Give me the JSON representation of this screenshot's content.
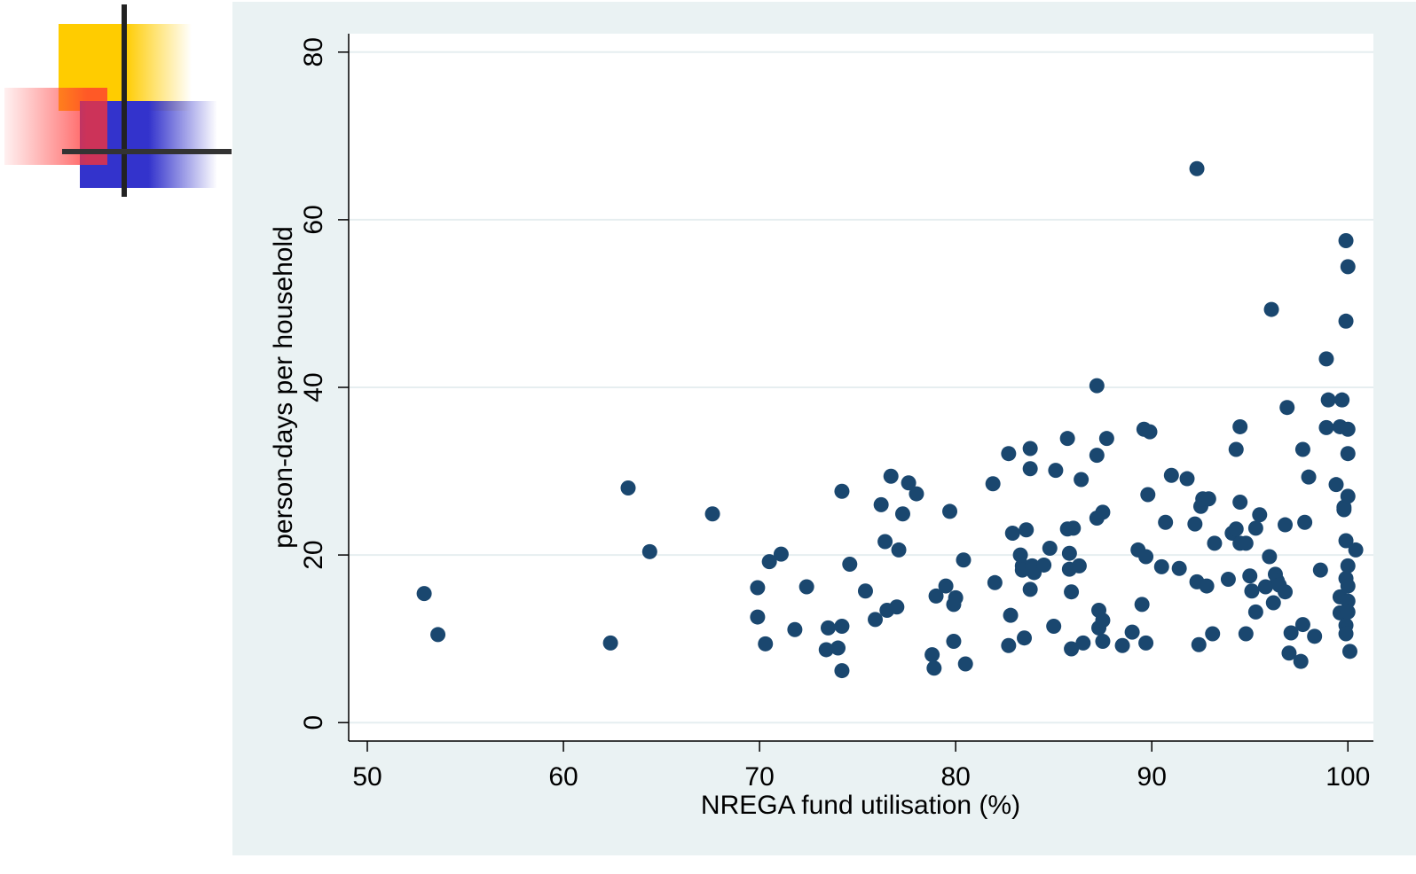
{
  "chart_data": {
    "type": "scatter",
    "xlabel": "NREGA fund utilisation (%)",
    "ylabel": "person-days per household",
    "xlim": [
      49.05,
      101.3
    ],
    "ylim": [
      -2.2,
      82.2
    ],
    "xticks": [
      50,
      60,
      70,
      80,
      90,
      100
    ],
    "yticks": [
      0,
      20,
      40,
      60,
      80
    ],
    "grid": true,
    "color": "#1a476f",
    "x": [
      52.9,
      53.6,
      62.4,
      63.3,
      64.4,
      67.6,
      69.9,
      69.9,
      70.3,
      70.5,
      71.1,
      71.8,
      72.4,
      73.4,
      73.5,
      74.0,
      74.2,
      74.2,
      74.2,
      74.6,
      75.4,
      75.9,
      76.2,
      76.4,
      76.5,
      76.7,
      77.0,
      77.1,
      77.3,
      77.6,
      78.0,
      78.8,
      78.9,
      79.0,
      79.5,
      79.7,
      79.9,
      80.0,
      79.9,
      80.4,
      80.5,
      81.9,
      82.0,
      82.7,
      82.7,
      82.8,
      82.9,
      83.3,
      83.4,
      83.4,
      83.5,
      83.6,
      83.8,
      83.8,
      83.8,
      83.9,
      84.0,
      84.5,
      84.8,
      85.0,
      85.1,
      85.7,
      85.7,
      85.8,
      85.8,
      85.9,
      85.9,
      86.0,
      86.3,
      86.4,
      86.5,
      87.2,
      87.2,
      87.2,
      87.3,
      87.3,
      87.5,
      87.5,
      87.5,
      87.7,
      88.5,
      89.0,
      89.3,
      89.5,
      89.6,
      89.7,
      89.7,
      89.8,
      89.9,
      90.5,
      90.7,
      91.0,
      91.4,
      91.8,
      92.2,
      92.3,
      92.3,
      92.4,
      92.5,
      92.6,
      92.8,
      92.9,
      93.1,
      93.2,
      93.9,
      94.1,
      94.3,
      94.3,
      94.5,
      94.5,
      94.5,
      94.8,
      94.8,
      95.0,
      95.1,
      95.3,
      95.3,
      95.5,
      95.8,
      96.0,
      96.1,
      96.2,
      96.3,
      96.4,
      96.5,
      96.8,
      96.8,
      96.9,
      97.0,
      97.1,
      97.6,
      97.7,
      97.7,
      97.8,
      98.0,
      98.3,
      98.6,
      98.9,
      98.9,
      99.0,
      99.4,
      99.6,
      99.6,
      99.6,
      99.7,
      99.8,
      99.8,
      99.9,
      99.9,
      99.9,
      99.9,
      99.9,
      99.9,
      100.0,
      100.0,
      100.0,
      100.0,
      100.0,
      100.0,
      100.0,
      100.0,
      100.1,
      100.4
    ],
    "values": [
      15.4,
      10.5,
      9.5,
      28.0,
      20.4,
      24.9,
      16.1,
      12.6,
      9.4,
      19.2,
      20.1,
      11.1,
      16.2,
      8.7,
      11.3,
      8.9,
      11.5,
      6.2,
      27.6,
      18.9,
      15.7,
      12.3,
      26.0,
      21.6,
      13.4,
      29.4,
      13.8,
      20.6,
      24.9,
      28.6,
      27.3,
      8.1,
      6.5,
      15.1,
      16.3,
      25.2,
      14.1,
      14.9,
      9.7,
      19.4,
      7.0,
      28.5,
      16.7,
      32.1,
      9.2,
      12.8,
      22.6,
      20.0,
      18.7,
      18.2,
      10.1,
      23.0,
      15.9,
      32.7,
      30.3,
      18.7,
      17.9,
      18.8,
      20.8,
      11.5,
      30.1,
      33.9,
      23.1,
      18.3,
      20.2,
      15.6,
      8.8,
      23.2,
      18.7,
      29.0,
      9.5,
      31.9,
      40.2,
      24.4,
      11.3,
      13.4,
      25.1,
      12.2,
      9.7,
      33.9,
      9.2,
      10.8,
      20.6,
      14.1,
      35.0,
      19.8,
      9.5,
      27.2,
      34.7,
      18.6,
      23.9,
      29.5,
      18.4,
      29.1,
      23.7,
      16.8,
      66.1,
      9.3,
      25.8,
      26.7,
      16.3,
      26.7,
      10.6,
      21.4,
      17.1,
      22.6,
      23.1,
      32.6,
      35.3,
      26.3,
      21.4,
      21.4,
      10.6,
      17.5,
      15.7,
      13.2,
      23.2,
      24.8,
      16.2,
      19.8,
      49.3,
      14.3,
      17.7,
      16.9,
      16.4,
      15.6,
      23.6,
      37.6,
      8.3,
      10.7,
      7.3,
      11.7,
      32.6,
      23.9,
      29.3,
      10.3,
      18.2,
      43.4,
      35.2,
      38.5,
      28.4,
      13.1,
      15.0,
      35.3,
      38.5,
      25.7,
      25.4,
      21.7,
      17.2,
      11.6,
      10.6,
      57.5,
      47.9,
      27.0,
      18.7,
      16.3,
      14.5,
      13.2,
      35.0,
      32.1,
      54.4,
      8.5,
      20.6
    ]
  }
}
